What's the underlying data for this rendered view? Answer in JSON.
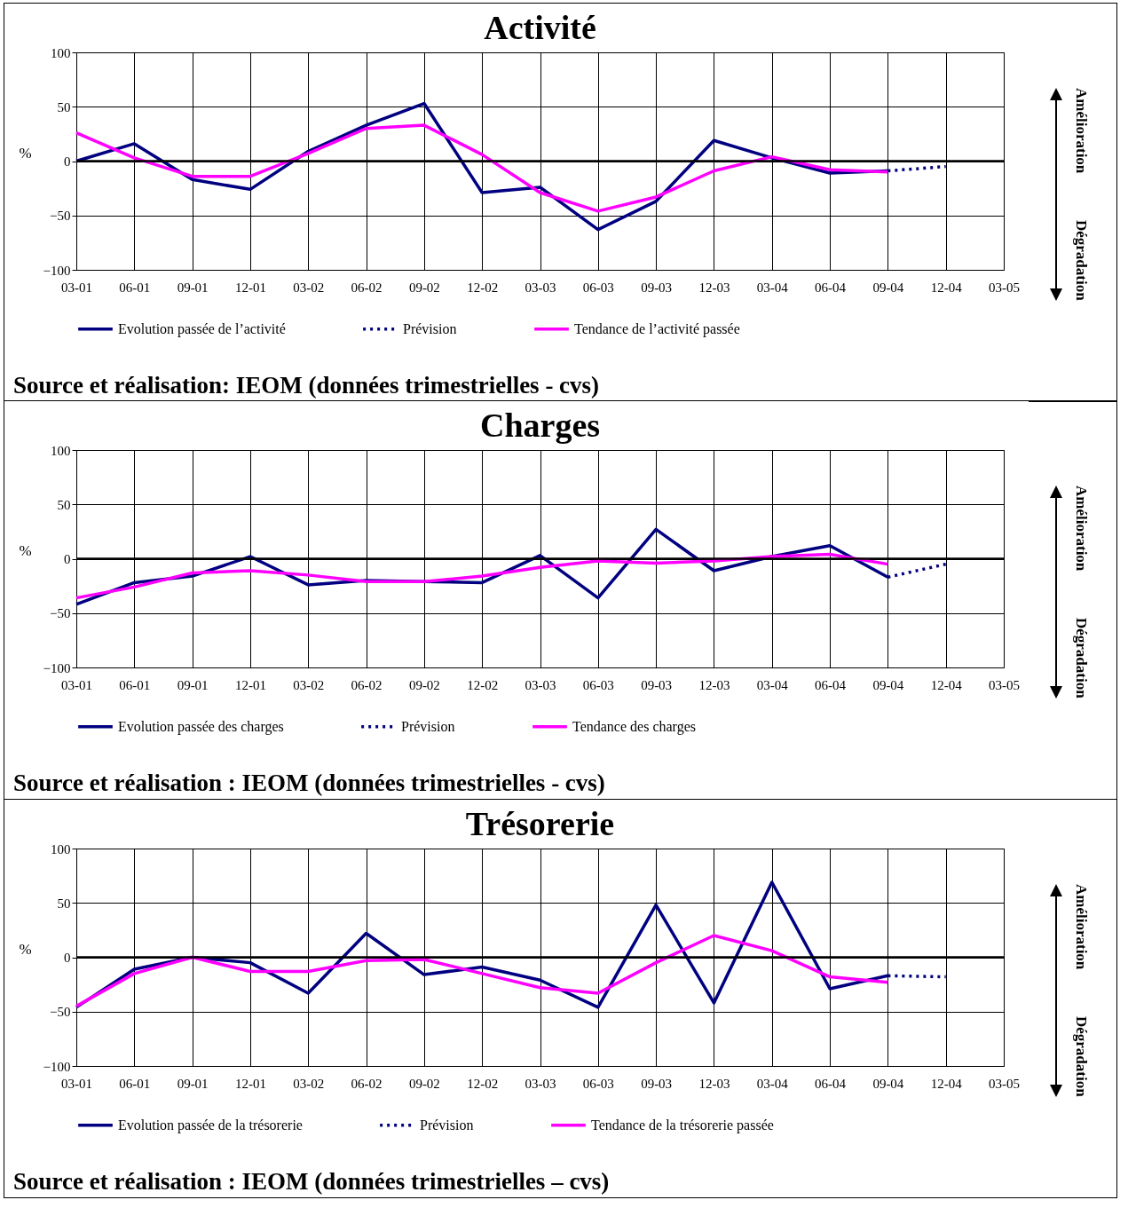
{
  "chart_data": [
    {
      "type": "line",
      "title": "Activité",
      "ylabel": "%",
      "categories": [
        "03-01",
        "06-01",
        "09-01",
        "12-01",
        "03-02",
        "06-02",
        "09-02",
        "12-02",
        "03-03",
        "06-03",
        "09-03",
        "12-03",
        "03-04",
        "06-04",
        "09-04",
        "12-04",
        "03-05"
      ],
      "series": [
        {
          "name": "Evolution passée de l’activité",
          "color": "#000080",
          "line_style": "solid",
          "values": [
            0,
            16,
            -17,
            -26,
            9,
            33,
            53,
            -29,
            -24,
            -63,
            -37,
            19,
            3,
            -11,
            -9,
            null,
            null
          ]
        },
        {
          "name": "Prévision",
          "color": "#000080",
          "line_style": "dotted",
          "values": [
            null,
            null,
            null,
            null,
            null,
            null,
            null,
            null,
            null,
            null,
            null,
            null,
            null,
            null,
            -9,
            -5,
            null
          ]
        },
        {
          "name": "Tendance de l’activité passée",
          "color": "#ff00ff",
          "line_style": "solid",
          "values": [
            26,
            3,
            -14,
            -14,
            7,
            30,
            33,
            6,
            -29,
            -46,
            -33,
            -9,
            4,
            -8,
            -10,
            null,
            null
          ]
        }
      ],
      "ylim": [
        -100,
        100
      ],
      "yticks": [
        -100,
        -50,
        0,
        50,
        100
      ],
      "grid": true,
      "legend": "bottom",
      "ref_lines": [
        {
          "axis": "y",
          "value": 0,
          "color": "#000000"
        }
      ],
      "annotations": [
        "Amélioration",
        "Dégradation",
        "Source et réalisation: IEOM (données trimestrielles - cvs)"
      ]
    },
    {
      "type": "line",
      "title": "Charges",
      "ylabel": "%",
      "categories": [
        "03-01",
        "06-01",
        "09-01",
        "12-01",
        "03-02",
        "06-02",
        "09-02",
        "12-02",
        "03-03",
        "06-03",
        "09-03",
        "12-03",
        "03-04",
        "06-04",
        "09-04",
        "12-04",
        "03-05"
      ],
      "series": [
        {
          "name": "Evolution passée des charges",
          "color": "#000080",
          "line_style": "solid",
          "values": [
            -42,
            -22,
            -16,
            2,
            -24,
            -20,
            -21,
            -22,
            3,
            -36,
            27,
            -11,
            2,
            12,
            -17,
            null,
            null
          ]
        },
        {
          "name": "Prévision",
          "color": "#000080",
          "line_style": "dotted",
          "values": [
            null,
            null,
            null,
            null,
            null,
            null,
            null,
            null,
            null,
            null,
            null,
            null,
            null,
            null,
            -17,
            -5,
            null
          ]
        },
        {
          "name": "Tendance des charges",
          "color": "#ff00ff",
          "line_style": "solid",
          "values": [
            -36,
            -26,
            -13,
            -11,
            -15,
            -21,
            -21,
            -16,
            -8,
            -2,
            -4,
            -2,
            2,
            4,
            -5,
            null,
            null
          ]
        }
      ],
      "ylim": [
        -100,
        100
      ],
      "yticks": [
        -100,
        -50,
        0,
        50,
        100
      ],
      "grid": true,
      "legend": "bottom",
      "ref_lines": [
        {
          "axis": "y",
          "value": 0,
          "color": "#000000"
        }
      ],
      "annotations": [
        "Amélioration",
        "Dégradation",
        "Source et réalisation : IEOM (données trimestrielles - cvs)"
      ]
    },
    {
      "type": "line",
      "title": "Trésorerie",
      "ylabel": "%",
      "categories": [
        "03-01",
        "06-01",
        "09-01",
        "12-01",
        "03-02",
        "06-02",
        "09-02",
        "12-02",
        "03-03",
        "06-03",
        "09-03",
        "12-03",
        "03-04",
        "06-04",
        "09-04",
        "12-04",
        "03-05"
      ],
      "series": [
        {
          "name": "Evolution passée de la trésorerie",
          "color": "#000080",
          "line_style": "solid",
          "values": [
            -46,
            -11,
            0,
            -5,
            -33,
            22,
            -16,
            -9,
            -21,
            -46,
            48,
            -42,
            69,
            -29,
            -17,
            null,
            null
          ]
        },
        {
          "name": "Prévision",
          "color": "#000080",
          "line_style": "dotted",
          "values": [
            null,
            null,
            null,
            null,
            null,
            null,
            null,
            null,
            null,
            null,
            null,
            null,
            null,
            null,
            -17,
            -18,
            null
          ]
        },
        {
          "name": "Tendance de la trésorerie passée",
          "color": "#ff00ff",
          "line_style": "solid",
          "values": [
            -45,
            -15,
            0,
            -13,
            -13,
            -3,
            -2,
            -15,
            -28,
            -33,
            -5,
            20,
            6,
            -18,
            -23,
            null,
            null
          ]
        }
      ],
      "ylim": [
        -100,
        100
      ],
      "yticks": [
        -100,
        -50,
        0,
        50,
        100
      ],
      "grid": true,
      "legend": "bottom",
      "ref_lines": [
        {
          "axis": "y",
          "value": 0,
          "color": "#000000"
        }
      ],
      "annotations": [
        "Amélioration",
        "Dégradation",
        "Source et réalisation : IEOM (données trimestrielles – cvs)"
      ]
    }
  ]
}
